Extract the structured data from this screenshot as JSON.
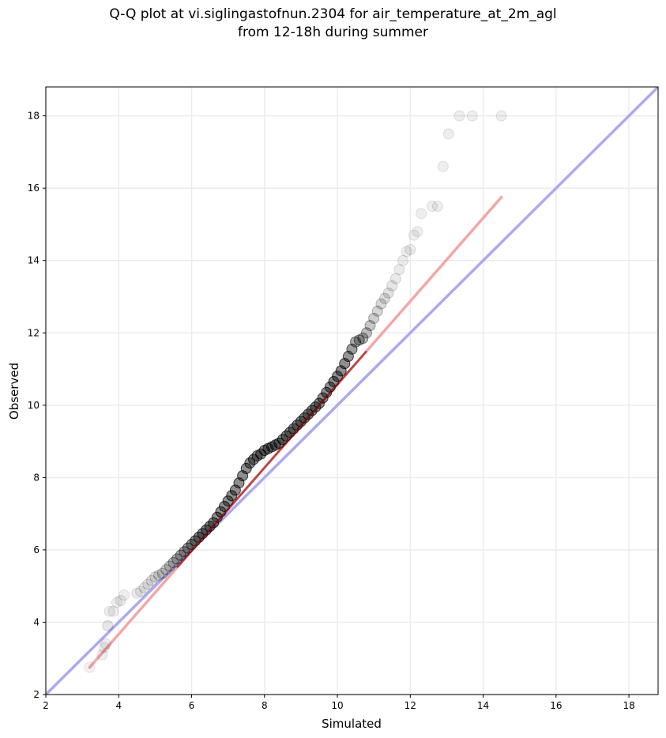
{
  "chart_data": {
    "type": "scatter",
    "title_line1": "Q-Q plot at vi.siglingastofnun.2304 for air_temperature_at_2m_agl",
    "title_line2": "from 12-18h during summer",
    "xlabel": "Simulated",
    "ylabel": "Observed",
    "xlim": [
      2,
      18.8
    ],
    "ylim": [
      2,
      18.8
    ],
    "xticks": [
      2,
      4,
      6,
      8,
      10,
      12,
      14,
      16,
      18
    ],
    "yticks": [
      2,
      4,
      6,
      8,
      10,
      12,
      14,
      16,
      18
    ],
    "grid": true,
    "colors": {
      "points": "#000000",
      "identity_line": "#aaaaf2",
      "fit_line": "#f4a6a6",
      "fit_line_dense": "#8b0000",
      "grid": "#ececec"
    },
    "identity_line": {
      "x": [
        2,
        18.8
      ],
      "y": [
        2,
        18.8
      ]
    },
    "fit_line": {
      "x": [
        3.2,
        14.5
      ],
      "y": [
        2.75,
        15.75
      ]
    },
    "quantiles": {
      "x": [
        3.2,
        3.55,
        3.6,
        3.65,
        3.7,
        3.75,
        3.85,
        3.95,
        4.05,
        4.15,
        4.5,
        4.6,
        4.7,
        4.8,
        4.9,
        5.0,
        5.1,
        5.2,
        5.3,
        5.4,
        5.5,
        5.6,
        5.7,
        5.8,
        5.9,
        6.0,
        6.1,
        6.2,
        6.3,
        6.4,
        6.5,
        6.6,
        6.7,
        6.8,
        6.9,
        7.0,
        7.1,
        7.2,
        7.3,
        7.4,
        7.5,
        7.6,
        7.7,
        7.8,
        7.9,
        8.0,
        8.1,
        8.2,
        8.3,
        8.4,
        8.5,
        8.6,
        8.7,
        8.8,
        8.9,
        9.0,
        9.1,
        9.2,
        9.3,
        9.4,
        9.5,
        9.6,
        9.7,
        9.8,
        9.9,
        10.0,
        10.1,
        10.2,
        10.3,
        10.4,
        10.5,
        10.6,
        10.7,
        10.8,
        10.9,
        11.0,
        11.1,
        11.2,
        11.3,
        11.4,
        11.5,
        11.6,
        11.7,
        11.8,
        11.9,
        12.0,
        12.1,
        12.2,
        12.3,
        12.6,
        12.75,
        12.9,
        13.05,
        13.35,
        13.7,
        14.5
      ],
      "y": [
        2.75,
        3.1,
        3.3,
        3.4,
        3.9,
        4.3,
        4.3,
        4.55,
        4.6,
        4.75,
        4.8,
        4.85,
        4.95,
        5.05,
        5.15,
        5.25,
        5.3,
        5.35,
        5.45,
        5.55,
        5.65,
        5.75,
        5.85,
        5.95,
        6.05,
        6.15,
        6.25,
        6.35,
        6.45,
        6.55,
        6.65,
        6.75,
        6.9,
        7.05,
        7.2,
        7.35,
        7.5,
        7.65,
        7.85,
        8.05,
        8.25,
        8.4,
        8.5,
        8.6,
        8.65,
        8.75,
        8.8,
        8.85,
        8.9,
        8.95,
        9.05,
        9.15,
        9.25,
        9.35,
        9.45,
        9.55,
        9.65,
        9.75,
        9.85,
        9.95,
        10.05,
        10.2,
        10.35,
        10.5,
        10.65,
        10.8,
        10.95,
        11.15,
        11.35,
        11.55,
        11.75,
        11.8,
        11.85,
        12.0,
        12.2,
        12.4,
        12.6,
        12.8,
        12.95,
        13.1,
        13.3,
        13.5,
        13.75,
        14.0,
        14.25,
        14.3,
        14.7,
        14.8,
        15.3,
        15.5,
        15.5,
        16.6,
        17.5,
        18.0,
        18.0,
        18.0
      ],
      "alpha": [
        0.1,
        0.12,
        0.12,
        0.13,
        0.18,
        0.12,
        0.12,
        0.12,
        0.14,
        0.12,
        0.14,
        0.14,
        0.16,
        0.18,
        0.2,
        0.22,
        0.25,
        0.28,
        0.32,
        0.38,
        0.45,
        0.5,
        0.55,
        0.6,
        0.65,
        0.7,
        0.75,
        0.8,
        0.8,
        0.8,
        0.8,
        0.8,
        0.8,
        0.8,
        0.8,
        0.8,
        0.8,
        0.8,
        0.8,
        0.8,
        0.8,
        0.8,
        0.8,
        0.8,
        0.8,
        0.8,
        0.8,
        0.8,
        0.8,
        0.8,
        0.8,
        0.8,
        0.8,
        0.8,
        0.8,
        0.8,
        0.8,
        0.8,
        0.8,
        0.8,
        0.8,
        0.8,
        0.8,
        0.8,
        0.8,
        0.8,
        0.8,
        0.8,
        0.75,
        0.7,
        0.6,
        0.55,
        0.5,
        0.45,
        0.4,
        0.35,
        0.3,
        0.27,
        0.24,
        0.2,
        0.18,
        0.16,
        0.15,
        0.14,
        0.13,
        0.13,
        0.12,
        0.12,
        0.12,
        0.12,
        0.12,
        0.12,
        0.12,
        0.12,
        0.12,
        0.12
      ]
    }
  }
}
